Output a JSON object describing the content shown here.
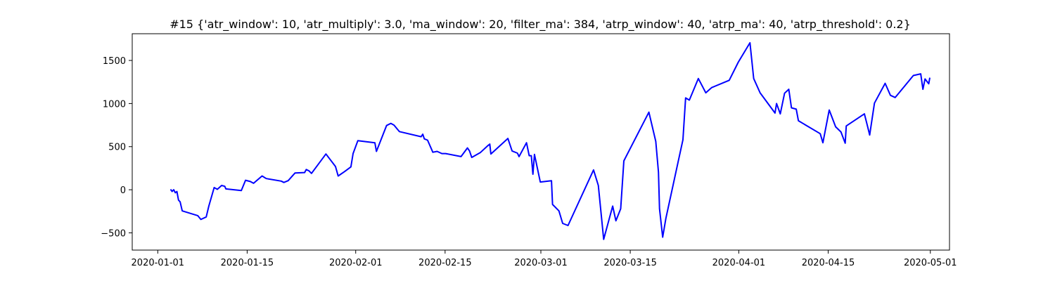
{
  "chart_data": {
    "type": "line",
    "title": "#15 {'atr_window': 10, 'atr_multiply': 3.0, 'ma_window': 20, 'filter_ma': 384, 'atrp_window': 40, 'atrp_ma': 40, 'atrp_threshold': 0.2}",
    "xlabel": "",
    "ylabel": "",
    "xlim": [
      "2019-12-28",
      "2020-05-04"
    ],
    "ylim": [
      -700,
      1810
    ],
    "x_ticks": [
      "2020-01-01",
      "2020-01-15",
      "2020-02-01",
      "2020-02-15",
      "2020-03-01",
      "2020-03-15",
      "2020-04-01",
      "2020-04-15",
      "2020-05-01"
    ],
    "y_ticks": [
      -500,
      0,
      500,
      1000,
      1500
    ],
    "grid": false,
    "line_color": "#0000ff",
    "series": [
      {
        "points": [
          [
            "2020-01-03 00:00",
            5
          ],
          [
            "2020-01-03 06:00",
            -20
          ],
          [
            "2020-01-03 12:00",
            0
          ],
          [
            "2020-01-03 18:00",
            -35
          ],
          [
            "2020-01-04 00:00",
            -20
          ],
          [
            "2020-01-04 06:00",
            -120
          ],
          [
            "2020-01-04 12:00",
            -140
          ],
          [
            "2020-01-04 20:00",
            -245
          ],
          [
            "2020-01-07 06:00",
            -300
          ],
          [
            "2020-01-07 18:00",
            -345
          ],
          [
            "2020-01-08 14:00",
            -315
          ],
          [
            "2020-01-09 00:00",
            -190
          ],
          [
            "2020-01-09 20:00",
            25
          ],
          [
            "2020-01-10 08:00",
            5
          ],
          [
            "2020-01-11 00:00",
            50
          ],
          [
            "2020-01-11 12:00",
            40
          ],
          [
            "2020-01-11 16:00",
            10
          ],
          [
            "2020-01-14 02:00",
            -10
          ],
          [
            "2020-01-14 18:00",
            110
          ],
          [
            "2020-01-15 12:00",
            95
          ],
          [
            "2020-01-16 00:00",
            75
          ],
          [
            "2020-01-17 08:00",
            160
          ],
          [
            "2020-01-18 00:00",
            130
          ],
          [
            "2020-01-20 08:00",
            100
          ],
          [
            "2020-01-20 18:00",
            85
          ],
          [
            "2020-01-21 10:00",
            105
          ],
          [
            "2020-01-22 12:00",
            195
          ],
          [
            "2020-01-24 00:00",
            200
          ],
          [
            "2020-01-24 06:00",
            235
          ],
          [
            "2020-01-24 16:00",
            220
          ],
          [
            "2020-01-25 02:00",
            190
          ],
          [
            "2020-01-27 08:00",
            415
          ],
          [
            "2020-01-28 20:00",
            270
          ],
          [
            "2020-01-29 06:00",
            160
          ],
          [
            "2020-01-30 06:00",
            210
          ],
          [
            "2020-01-31 06:00",
            265
          ],
          [
            "2020-01-31 14:00",
            420
          ],
          [
            "2020-02-01 08:00",
            570
          ],
          [
            "2020-02-04 00:00",
            545
          ],
          [
            "2020-02-04 06:00",
            445
          ],
          [
            "2020-02-05 20:00",
            745
          ],
          [
            "2020-02-06 12:00",
            770
          ],
          [
            "2020-02-07 00:00",
            750
          ],
          [
            "2020-02-07 20:00",
            675
          ],
          [
            "2020-02-11 06:00",
            615
          ],
          [
            "2020-02-11 12:00",
            645
          ],
          [
            "2020-02-11 18:00",
            590
          ],
          [
            "2020-02-12 06:00",
            575
          ],
          [
            "2020-02-13 02:00",
            435
          ],
          [
            "2020-02-13 18:00",
            445
          ],
          [
            "2020-02-14 12:00",
            420
          ],
          [
            "2020-02-15 02:00",
            420
          ],
          [
            "2020-02-17 12:00",
            385
          ],
          [
            "2020-02-18 12:00",
            485
          ],
          [
            "2020-02-18 20:00",
            450
          ],
          [
            "2020-02-19 04:00",
            375
          ],
          [
            "2020-02-20 12:00",
            430
          ],
          [
            "2020-02-21 18:00",
            515
          ],
          [
            "2020-02-22 00:00",
            530
          ],
          [
            "2020-02-22 04:00",
            415
          ],
          [
            "2020-02-24 20:00",
            595
          ],
          [
            "2020-02-25 12:00",
            450
          ],
          [
            "2020-02-26 08:00",
            425
          ],
          [
            "2020-02-26 14:00",
            385
          ],
          [
            "2020-02-27 18:00",
            545
          ],
          [
            "2020-02-28 04:00",
            395
          ],
          [
            "2020-02-28 12:00",
            395
          ],
          [
            "2020-02-28 18:00",
            180
          ],
          [
            "2020-02-29 00:00",
            410
          ],
          [
            "2020-02-29 22:00",
            90
          ],
          [
            "2020-03-02 16:00",
            105
          ],
          [
            "2020-03-02 20:00",
            -170
          ],
          [
            "2020-03-03 20:00",
            -245
          ],
          [
            "2020-03-04 10:00",
            -390
          ],
          [
            "2020-03-05 06:00",
            -415
          ],
          [
            "2020-03-09 06:00",
            230
          ],
          [
            "2020-03-10 00:00",
            50
          ],
          [
            "2020-03-10 12:00",
            -320
          ],
          [
            "2020-03-10 20:00",
            -575
          ],
          [
            "2020-03-12 06:00",
            -190
          ],
          [
            "2020-03-12 18:00",
            -360
          ],
          [
            "2020-03-13 12:00",
            -220
          ],
          [
            "2020-03-14 00:00",
            335
          ],
          [
            "2020-03-17 22:00",
            900
          ],
          [
            "2020-03-19 00:00",
            560
          ],
          [
            "2020-03-19 10:00",
            205
          ],
          [
            "2020-03-19 14:00",
            -220
          ],
          [
            "2020-03-20 02:00",
            -550
          ],
          [
            "2020-03-20 14:00",
            -330
          ],
          [
            "2020-03-22 12:00",
            325
          ],
          [
            "2020-03-23 06:00",
            580
          ],
          [
            "2020-03-23 16:00",
            1065
          ],
          [
            "2020-03-24 06:00",
            1040
          ],
          [
            "2020-03-25 16:00",
            1290
          ],
          [
            "2020-03-26 20:00",
            1125
          ],
          [
            "2020-03-27 18:00",
            1185
          ],
          [
            "2020-03-30 12:00",
            1270
          ],
          [
            "2020-03-31 22:00",
            1480
          ],
          [
            "2020-04-02 18:00",
            1705
          ],
          [
            "2020-04-03 08:00",
            1290
          ],
          [
            "2020-04-04 08:00",
            1125
          ],
          [
            "2020-04-06 16:00",
            890
          ],
          [
            "2020-04-06 22:00",
            1000
          ],
          [
            "2020-04-07 12:00",
            880
          ],
          [
            "2020-04-08 04:00",
            1120
          ],
          [
            "2020-04-08 20:00",
            1165
          ],
          [
            "2020-04-09 06:00",
            950
          ],
          [
            "2020-04-10 00:00",
            935
          ],
          [
            "2020-04-10 08:00",
            800
          ],
          [
            "2020-04-13 18:00",
            650
          ],
          [
            "2020-04-14 04:00",
            545
          ],
          [
            "2020-04-15 04:00",
            925
          ],
          [
            "2020-04-16 04:00",
            730
          ],
          [
            "2020-04-17 00:00",
            670
          ],
          [
            "2020-04-17 16:00",
            540
          ],
          [
            "2020-04-17 20:00",
            740
          ],
          [
            "2020-04-20 16:00",
            880
          ],
          [
            "2020-04-21 04:00",
            735
          ],
          [
            "2020-04-21 12:00",
            635
          ],
          [
            "2020-04-22 06:00",
            1005
          ],
          [
            "2020-04-23 22:00",
            1235
          ],
          [
            "2020-04-24 18:00",
            1095
          ],
          [
            "2020-04-25 12:00",
            1070
          ],
          [
            "2020-04-28 08:00",
            1325
          ],
          [
            "2020-04-29 12:00",
            1345
          ],
          [
            "2020-04-29 20:00",
            1165
          ],
          [
            "2020-04-30 04:00",
            1285
          ],
          [
            "2020-04-30 18:00",
            1230
          ],
          [
            "2020-04-30 22:00",
            1300
          ]
        ]
      }
    ]
  }
}
